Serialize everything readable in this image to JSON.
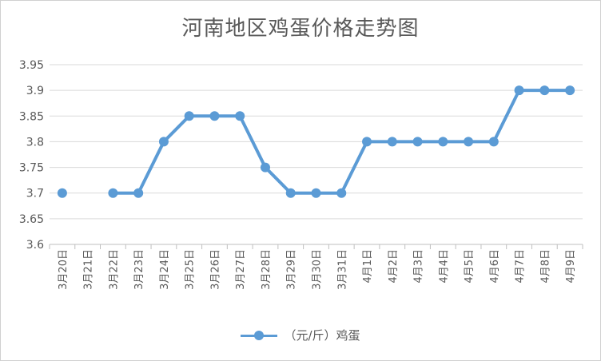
{
  "chart_data": {
    "type": "line",
    "title": "河南地区鸡蛋价格走势图",
    "categories": [
      "3月20日",
      "3月21日",
      "3月22日",
      "3月23日",
      "3月24日",
      "3月25日",
      "3月26日",
      "3月27日",
      "3月28日",
      "3月29日",
      "3月30日",
      "3月31日",
      "4月1日",
      "4月2日",
      "4月3日",
      "4月4日",
      "4月5日",
      "4月6日",
      "4月7日",
      "4月8日",
      "4月9日"
    ],
    "series": [
      {
        "name": "（元/斤）鸡蛋",
        "values": [
          3.7,
          null,
          3.7,
          3.7,
          3.8,
          3.85,
          3.85,
          3.85,
          3.75,
          3.7,
          3.7,
          3.7,
          3.8,
          3.8,
          3.8,
          3.8,
          3.8,
          3.8,
          3.9,
          3.9,
          3.9
        ],
        "color": "#5b9bd5"
      }
    ],
    "ylim": [
      3.6,
      3.95
    ],
    "yticks": [
      "3.6",
      "3.65",
      "3.7",
      "3.75",
      "3.8",
      "3.85",
      "3.9",
      "3.95"
    ],
    "grid": true,
    "legend": "bottom"
  }
}
